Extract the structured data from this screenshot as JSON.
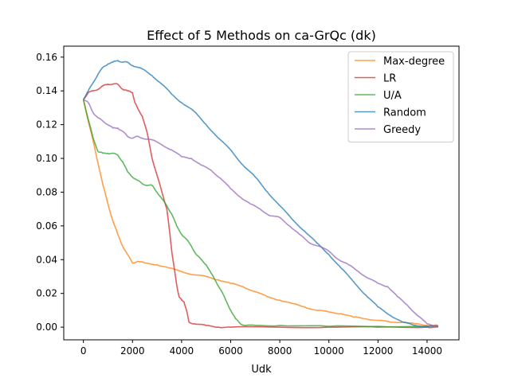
{
  "chart_data": {
    "type": "line",
    "title": "Effect of 5 Methods on ca-GrQc (dk)",
    "xlabel": "Udk",
    "ylabel": "",
    "xlim": [
      -800,
      15300
    ],
    "ylim": [
      -0.0075,
      0.1665
    ],
    "xticks": [
      0,
      2000,
      4000,
      6000,
      8000,
      10000,
      12000,
      14000
    ],
    "xtick_labels": [
      "0",
      "2000",
      "4000",
      "6000",
      "8000",
      "10000",
      "12000",
      "14000"
    ],
    "yticks": [
      0.0,
      0.02,
      0.04,
      0.06,
      0.08,
      0.1,
      0.12,
      0.14,
      0.16
    ],
    "ytick_labels": [
      "0.00",
      "0.02",
      "0.04",
      "0.06",
      "0.08",
      "0.10",
      "0.12",
      "0.14",
      "0.16"
    ],
    "grid": false,
    "legend_position": "top-right",
    "series": [
      {
        "name": "Max-degree",
        "color": "#ff7f0e",
        "x": [
          0,
          200,
          400,
          600,
          800,
          1000,
          1200,
          1400,
          1600,
          1800,
          2000,
          2200,
          2500,
          3000,
          3500,
          4000,
          4500,
          5000,
          5500,
          6000,
          6500,
          7000,
          7500,
          8000,
          8500,
          9000,
          9500,
          10000,
          10500,
          11000,
          11500,
          12000,
          12500,
          13000,
          13500,
          14000,
          14300,
          14450
        ],
        "y": [
          0.135,
          0.122,
          0.11,
          0.097,
          0.084,
          0.073,
          0.063,
          0.055,
          0.048,
          0.043,
          0.038,
          0.039,
          0.038,
          0.037,
          0.035,
          0.033,
          0.031,
          0.03,
          0.028,
          0.026,
          0.024,
          0.021,
          0.018,
          0.016,
          0.014,
          0.012,
          0.01,
          0.009,
          0.008,
          0.006,
          0.005,
          0.004,
          0.003,
          0.003,
          0.002,
          0.001,
          0.001,
          0.001
        ]
      },
      {
        "name": "LR",
        "color": "#d62728",
        "x": [
          0,
          200,
          400,
          600,
          800,
          1000,
          1200,
          1400,
          1600,
          1800,
          2000,
          2100,
          2200,
          2400,
          2600,
          2800,
          3000,
          3200,
          3400,
          3500,
          3600,
          3700,
          3800,
          3900,
          4000,
          4100,
          4200,
          4300,
          4500,
          5000,
          5500,
          6000,
          8000,
          10000,
          12000,
          14000,
          14450
        ],
        "y": [
          0.135,
          0.139,
          0.14,
          0.141,
          0.143,
          0.144,
          0.144,
          0.144,
          0.141,
          0.14,
          0.139,
          0.133,
          0.13,
          0.125,
          0.115,
          0.1,
          0.09,
          0.08,
          0.07,
          0.058,
          0.045,
          0.035,
          0.025,
          0.018,
          0.016,
          0.015,
          0.01,
          0.003,
          0.002,
          0.001,
          0.0,
          0.0,
          0.0,
          0.0,
          0.0,
          0.0,
          0.0
        ]
      },
      {
        "name": "U/A",
        "color": "#2ca02c",
        "x": [
          0,
          200,
          400,
          600,
          800,
          1000,
          1200,
          1400,
          1600,
          1800,
          2000,
          2200,
          2400,
          2600,
          2800,
          3000,
          3200,
          3400,
          3600,
          3800,
          4000,
          4200,
          4400,
          4600,
          4800,
          5000,
          5200,
          5400,
          5600,
          5800,
          6000,
          6200,
          6400,
          6600,
          7000,
          8000,
          10000,
          12000,
          14000,
          14450
        ],
        "y": [
          0.135,
          0.123,
          0.112,
          0.104,
          0.103,
          0.103,
          0.103,
          0.102,
          0.098,
          0.092,
          0.089,
          0.087,
          0.085,
          0.084,
          0.084,
          0.08,
          0.076,
          0.072,
          0.067,
          0.06,
          0.055,
          0.052,
          0.048,
          0.043,
          0.04,
          0.037,
          0.032,
          0.027,
          0.022,
          0.016,
          0.01,
          0.005,
          0.002,
          0.001,
          0.001,
          0.001,
          0.0005,
          0.0005,
          0.0005,
          0.0005
        ]
      },
      {
        "name": "Random",
        "color": "#1f77b4",
        "x": [
          0,
          200,
          400,
          600,
          800,
          1000,
          1200,
          1400,
          1600,
          1800,
          2000,
          2400,
          2800,
          3200,
          3600,
          4000,
          4500,
          5000,
          5500,
          6000,
          6500,
          7000,
          7500,
          8000,
          8500,
          9000,
          9500,
          10000,
          10500,
          11000,
          11500,
          12000,
          12500,
          13000,
          13500,
          14000,
          14450
        ],
        "y": [
          0.135,
          0.14,
          0.145,
          0.15,
          0.154,
          0.156,
          0.157,
          0.158,
          0.157,
          0.157,
          0.155,
          0.153,
          0.149,
          0.144,
          0.138,
          0.133,
          0.128,
          0.12,
          0.112,
          0.105,
          0.096,
          0.089,
          0.08,
          0.072,
          0.064,
          0.057,
          0.05,
          0.043,
          0.035,
          0.027,
          0.019,
          0.012,
          0.007,
          0.003,
          0.001,
          0.0005,
          0.0005
        ]
      },
      {
        "name": "Greedy",
        "color": "#9467bd",
        "x": [
          0,
          200,
          400,
          600,
          800,
          1000,
          1200,
          1400,
          1600,
          1800,
          2000,
          2200,
          2400,
          2800,
          3200,
          3600,
          4000,
          4400,
          4800,
          5200,
          5600,
          6000,
          6400,
          6800,
          7200,
          7600,
          8000,
          8400,
          8800,
          9200,
          9600,
          10000,
          10400,
          10800,
          11200,
          11600,
          12000,
          12400,
          12800,
          13200,
          13600,
          14000,
          14450
        ],
        "y": [
          0.135,
          0.133,
          0.127,
          0.124,
          0.122,
          0.12,
          0.118,
          0.118,
          0.116,
          0.113,
          0.112,
          0.113,
          0.112,
          0.111,
          0.108,
          0.105,
          0.101,
          0.1,
          0.096,
          0.093,
          0.088,
          0.082,
          0.077,
          0.073,
          0.07,
          0.066,
          0.065,
          0.06,
          0.055,
          0.05,
          0.048,
          0.045,
          0.04,
          0.037,
          0.033,
          0.029,
          0.026,
          0.024,
          0.018,
          0.013,
          0.007,
          0.002,
          0.0005
        ]
      }
    ]
  }
}
